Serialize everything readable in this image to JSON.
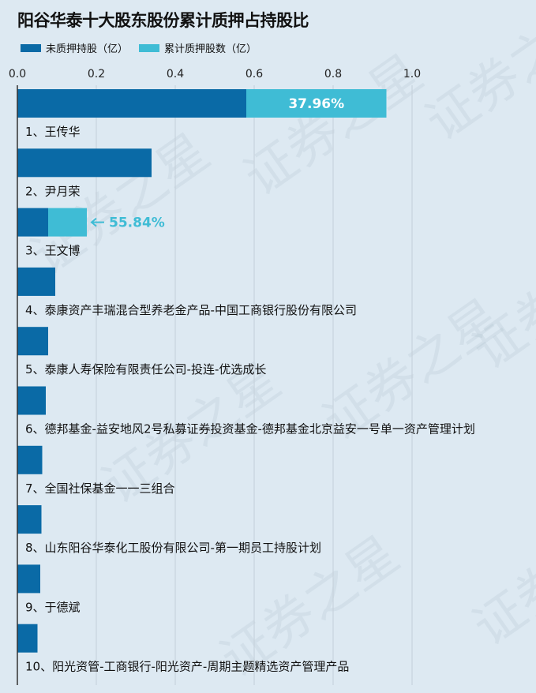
{
  "title": "阳谷华泰十大股东股份累计质押占持股比",
  "legend": [
    {
      "label": "未质押持股（亿）",
      "color": "#0a6aa6"
    },
    {
      "label": "累计质押股数（亿）",
      "color": "#3fbcd5"
    }
  ],
  "watermark": "证券之星",
  "chart_data": {
    "type": "bar",
    "orientation": "horizontal",
    "stacked": true,
    "xlim": [
      0,
      1.0
    ],
    "xticks": [
      "0.0",
      "0.2",
      "0.4",
      "0.6",
      "0.8",
      "1.0"
    ],
    "grid": true,
    "legend_position": "top-left",
    "categories": [
      "1、王传华",
      "2、尹月荣",
      "3、王文博",
      "4、泰康资产丰瑞混合型养老金产品-中国工商银行股份有限公司",
      "5、泰康人寿保险有限责任公司-投连-优选成长",
      "6、德邦基金-益安地风2号私募证券投资基金-德邦基金北京益安一号单一资产管理计划",
      "7、全国社保基金一一三组合",
      "8、山东阳谷华泰化工股份有限公司-第一期员工持股计划",
      "9、于德斌",
      "10、阳光资管-工商银行-阳光资产-周期主题精选资产管理产品"
    ],
    "series": [
      {
        "name": "未质押持股（亿）",
        "color": "#0a6aa6",
        "values": [
          0.58,
          0.34,
          0.078,
          0.096,
          0.078,
          0.072,
          0.063,
          0.061,
          0.058,
          0.051
        ]
      },
      {
        "name": "累计质押股数（亿）",
        "color": "#3fbcd5",
        "values": [
          0.355,
          0,
          0.098,
          0,
          0,
          0,
          0,
          0,
          0,
          0
        ]
      }
    ],
    "annotations": [
      {
        "index": 0,
        "text": "37.96%",
        "placement": "inside"
      },
      {
        "index": 2,
        "text": "55.84%",
        "placement": "outside-arrow"
      }
    ]
  }
}
